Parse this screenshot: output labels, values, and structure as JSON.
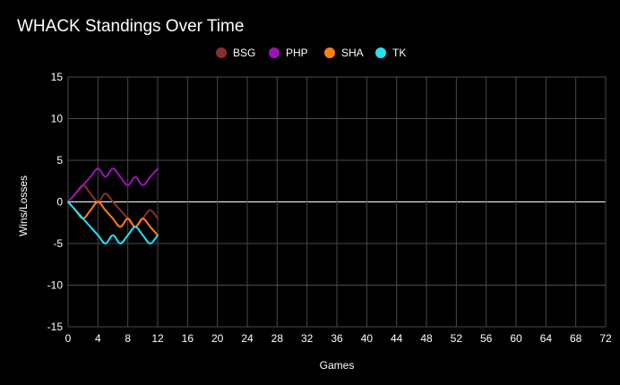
{
  "chart_data": {
    "type": "line",
    "title": "WHACK Standings Over Time",
    "xlabel": "Games",
    "ylabel": "Wins/Losses",
    "xlim": [
      0,
      72
    ],
    "ylim": [
      -15,
      15
    ],
    "x_ticks": [
      0,
      4,
      8,
      12,
      16,
      20,
      24,
      28,
      32,
      36,
      40,
      44,
      48,
      52,
      56,
      60,
      64,
      68,
      72
    ],
    "y_ticks": [
      15,
      10,
      5,
      0,
      -5,
      -10,
      -15
    ],
    "grid": true,
    "legend_position": "top",
    "x": [
      0,
      1,
      2,
      3,
      4,
      5,
      6,
      7,
      8,
      9,
      10,
      11,
      12
    ],
    "series": [
      {
        "name": "BSG",
        "color": "#8b2e2e",
        "values": [
          0,
          1,
          2,
          1,
          0,
          1,
          0,
          -1,
          -2,
          -3,
          -2,
          -1,
          -2
        ]
      },
      {
        "name": "PHP",
        "color": "#9c13b8",
        "values": [
          0,
          1,
          2,
          3,
          4,
          3,
          4,
          3,
          2,
          3,
          2,
          3,
          4
        ]
      },
      {
        "name": "SHA",
        "color": "#ff7f0e",
        "values": [
          0,
          -1,
          -2,
          -1,
          0,
          -1,
          -2,
          -3,
          -2,
          -3,
          -2,
          -3,
          -4
        ]
      },
      {
        "name": "TK",
        "color": "#1fe5f0",
        "values": [
          0,
          -1,
          -2,
          -3,
          -4,
          -5,
          -4,
          -5,
          -4,
          -3,
          -4,
          -5,
          -4
        ]
      }
    ]
  }
}
